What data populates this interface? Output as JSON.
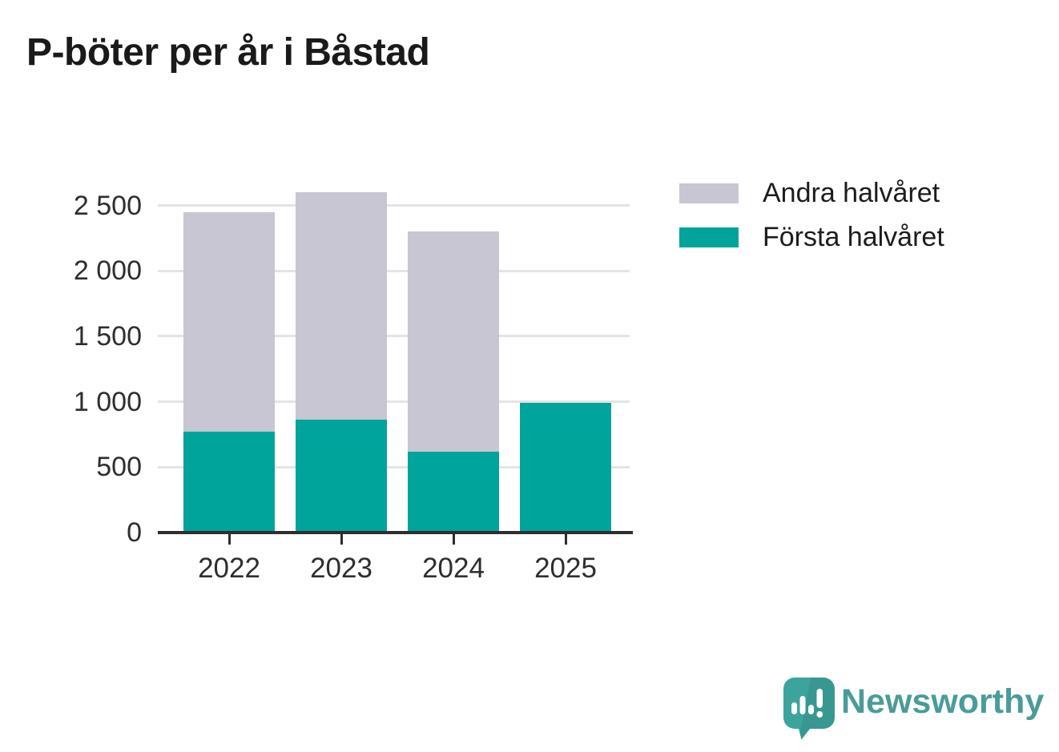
{
  "title": "P-böter per år i Båstad",
  "colors": {
    "first_half": "#00a49a",
    "second_half": "#c8c6d2",
    "axis": "#2e2e2e",
    "gridline": "#e4e4e6",
    "brand_teal": "#4a9c98"
  },
  "legend": {
    "items": [
      {
        "label": "Andra halvåret",
        "series": "Andra halvåret"
      },
      {
        "label": "Första halvåret",
        "series": "Första halvåret"
      }
    ]
  },
  "chart_data": {
    "type": "bar",
    "stacked": true,
    "title": "P-böter per år i Båstad",
    "categories": [
      "2022",
      "2023",
      "2024",
      "2025"
    ],
    "series": [
      {
        "name": "Första halvåret",
        "color": "#00a49a",
        "values": [
          770,
          860,
          620,
          990
        ]
      },
      {
        "name": "Andra halvåret",
        "color": "#c8c6d2",
        "values": [
          1680,
          1740,
          1680,
          0
        ]
      }
    ],
    "totals": [
      2450,
      2600,
      2300,
      990
    ],
    "xlabel": "",
    "ylabel": "",
    "ylim": [
      0,
      2600
    ],
    "yticks": [
      0,
      500,
      1000,
      1500,
      2000,
      2500
    ],
    "ytick_labels": [
      "0",
      "500",
      "1 000",
      "1 500",
      "2 000",
      "2 500"
    ],
    "grid": true,
    "legend_position": "top-right"
  },
  "branding": {
    "wordmark": "Newsworthy",
    "logo_icon": "speech-bubble-bar-chart-exclamation"
  }
}
